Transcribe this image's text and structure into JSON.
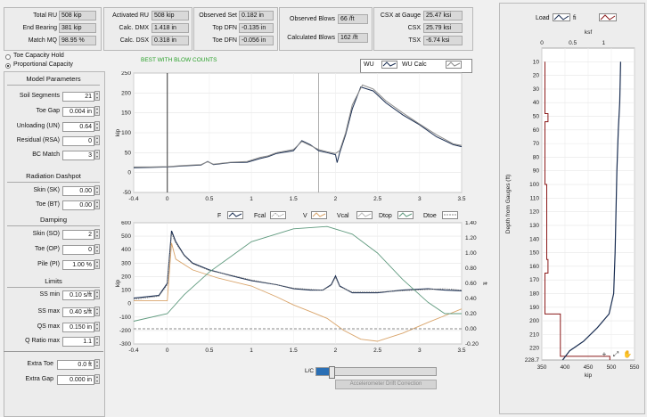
{
  "results": {
    "total_ru": {
      "label": "Total RU",
      "value": "508 kip"
    },
    "end_bearing": {
      "label": "End Bearing",
      "value": "381 kip"
    },
    "match_mq": {
      "label": "Match MQ",
      "value": "98.95 %"
    },
    "activated_ru": {
      "label": "Activated RU",
      "value": "508 kip"
    },
    "calc_dmx": {
      "label": "Calc. DMX",
      "value": "1.418 in"
    },
    "calc_dsx": {
      "label": "Calc. DSX",
      "value": "0.318 in"
    },
    "observed_set": {
      "label": "Observed Set",
      "value": "0.182 in"
    },
    "top_dfn": {
      "label": "Top DFN",
      "value": "-0.135 in"
    },
    "toe_dfn": {
      "label": "Toe DFN",
      "value": "-0.056 in"
    },
    "observed_blows": {
      "label": "Observed Blows",
      "value": "66 /ft"
    },
    "calculated_blows": {
      "label": "Calculated Blows",
      "value": "162 /ft"
    },
    "csx_at_gauge": {
      "label": "CSX at Gauge",
      "value": "25.47 ksi"
    },
    "csx": {
      "label": "CSX",
      "value": "25.79 ksi"
    },
    "tsx": {
      "label": "TSX",
      "value": "-6.74 ksi"
    }
  },
  "capacity_mode": {
    "options": [
      "Toe Capacity Hold",
      "Proportional Capacity"
    ],
    "selected": "Proportional Capacity"
  },
  "model_parameters": {
    "title": "Model Parameters",
    "fields": [
      {
        "label": "Soil Segments",
        "value": "21"
      },
      {
        "label": "Toe Gap",
        "value": "0.004 in"
      },
      {
        "label": "Unloading (UN)",
        "value": "0.64"
      },
      {
        "label": "Residual (RSA)",
        "value": "0"
      },
      {
        "label": "BC Match",
        "value": "3"
      }
    ]
  },
  "radiation_dashpot": {
    "title": "Radiation Dashpot",
    "fields": [
      {
        "label": "Skin (SK)",
        "value": "0.00"
      },
      {
        "label": "Toe (BT)",
        "value": "0.00"
      }
    ]
  },
  "damping": {
    "title": "Damping",
    "fields": [
      {
        "label": "Skin (SO)",
        "value": "2"
      },
      {
        "label": "Toe (OP)",
        "value": "0"
      },
      {
        "label": "Pile (PI)",
        "value": "1.00 %"
      }
    ]
  },
  "limits": {
    "title": "Limits",
    "fields": [
      {
        "label": "SS min",
        "value": "0.10 s/ft"
      },
      {
        "label": "SS max",
        "value": "0.40 s/ft"
      },
      {
        "label": "QS max",
        "value": "0.150 in"
      },
      {
        "label": "Q Ratio max",
        "value": "1.1"
      }
    ]
  },
  "extras": {
    "fields": [
      {
        "label": "Extra Toe",
        "value": "0.0 ft"
      },
      {
        "label": "Extra Gap",
        "value": "0.000 in"
      }
    ]
  },
  "top_chart": {
    "title": "BEST WITH BLOW COUNTS",
    "legend": [
      "WU",
      "WU Calc"
    ],
    "ylabel": "kip"
  },
  "bottom_chart": {
    "legend": [
      "F",
      "Fcal",
      "V",
      "Vcal",
      "Dtop",
      "Dtoe"
    ],
    "ylabel_left": "kip",
    "ylabel_right": "ft"
  },
  "drift_slider": {
    "lc_label": "L/C",
    "label": "Accelerometer Drift Correction",
    "value_fraction": 0.12
  },
  "depth_chart": {
    "legend": [
      "Load",
      "fi"
    ],
    "top_axis_label": "ksf",
    "bottom_axis_label": "kip",
    "ylabel": "Depth from Gauges (ft)",
    "last_depth_label": "228.7"
  },
  "colors": {
    "wave_blue": "#1a2e52",
    "wave_calc": "#8a8a8a",
    "velocity_orange": "#d9a46a",
    "green": "#5f9a7e",
    "dashed": "#888888",
    "red": "#8b1a1a",
    "title_green": "#2aa02a"
  },
  "chart_data": [
    {
      "type": "line",
      "title": "BEST WITH BLOW COUNTS",
      "xlabel": "",
      "ylabel": "kip",
      "xlim": [
        -0.4,
        3.5
      ],
      "ylim": [
        -50,
        250
      ],
      "xticks": [
        -0.4,
        0,
        0.5,
        1,
        1.5,
        2,
        2.5,
        3,
        3.5
      ],
      "yticks": [
        -50,
        0,
        50,
        100,
        150,
        200,
        250
      ],
      "series": [
        {
          "name": "WU",
          "points": [
            [
              -0.4,
              12
            ],
            [
              -0.2,
              13
            ],
            [
              0,
              14
            ],
            [
              0.2,
              17
            ],
            [
              0.4,
              19
            ],
            [
              0.48,
              28
            ],
            [
              0.55,
              20
            ],
            [
              0.75,
              25
            ],
            [
              0.95,
              26
            ],
            [
              1.1,
              35
            ],
            [
              1.2,
              40
            ],
            [
              1.3,
              48
            ],
            [
              1.5,
              55
            ],
            [
              1.6,
              80
            ],
            [
              1.7,
              70
            ],
            [
              1.8,
              55
            ],
            [
              1.9,
              50
            ],
            [
              2.0,
              45
            ],
            [
              2.02,
              25
            ],
            [
              2.05,
              50
            ],
            [
              2.12,
              95
            ],
            [
              2.2,
              160
            ],
            [
              2.3,
              215
            ],
            [
              2.45,
              205
            ],
            [
              2.6,
              175
            ],
            [
              2.8,
              145
            ],
            [
              3.0,
              120
            ],
            [
              3.2,
              90
            ],
            [
              3.4,
              70
            ],
            [
              3.5,
              65
            ]
          ]
        },
        {
          "name": "WU Calc",
          "points": [
            [
              -0.4,
              14
            ],
            [
              -0.2,
              14
            ],
            [
              0,
              15
            ],
            [
              0.2,
              18
            ],
            [
              0.4,
              20
            ],
            [
              0.48,
              27
            ],
            [
              0.55,
              21
            ],
            [
              0.75,
              26
            ],
            [
              0.95,
              28
            ],
            [
              1.1,
              38
            ],
            [
              1.2,
              42
            ],
            [
              1.3,
              50
            ],
            [
              1.5,
              58
            ],
            [
              1.6,
              78
            ],
            [
              1.7,
              68
            ],
            [
              1.8,
              58
            ],
            [
              1.9,
              52
            ],
            [
              2.0,
              48
            ],
            [
              2.05,
              55
            ],
            [
              2.12,
              100
            ],
            [
              2.2,
              170
            ],
            [
              2.32,
              220
            ],
            [
              2.45,
              210
            ],
            [
              2.6,
              180
            ],
            [
              2.8,
              150
            ],
            [
              3.0,
              122
            ],
            [
              3.2,
              95
            ],
            [
              3.4,
              72
            ],
            [
              3.5,
              68
            ]
          ]
        }
      ]
    },
    {
      "type": "line",
      "ylabel": "kip",
      "y2label": "ft",
      "xlim": [
        -0.4,
        3.5
      ],
      "ylim": [
        -300,
        600
      ],
      "y2lim": [
        -0.2,
        1.4
      ],
      "xticks": [
        -0.4,
        0,
        0.5,
        1,
        1.5,
        2,
        2.5,
        3,
        3.5
      ],
      "yticks": [
        -300,
        -200,
        -100,
        0,
        100,
        200,
        300,
        400,
        500,
        600
      ],
      "y2ticks": [
        -0.2,
        0,
        0.2,
        0.4,
        0.6,
        0.8,
        1.0,
        1.2,
        1.4
      ],
      "series": [
        {
          "name": "F",
          "axis": "left",
          "points": [
            [
              -0.4,
              40
            ],
            [
              -0.1,
              60
            ],
            [
              0,
              150
            ],
            [
              0.05,
              540
            ],
            [
              0.1,
              460
            ],
            [
              0.2,
              360
            ],
            [
              0.3,
              300
            ],
            [
              0.5,
              250
            ],
            [
              0.8,
              200
            ],
            [
              1.0,
              170
            ],
            [
              1.3,
              140
            ],
            [
              1.5,
              110
            ],
            [
              1.7,
              100
            ],
            [
              1.85,
              100
            ],
            [
              1.95,
              140
            ],
            [
              2.0,
              205
            ],
            [
              2.05,
              130
            ],
            [
              2.2,
              80
            ],
            [
              2.5,
              80
            ],
            [
              2.8,
              100
            ],
            [
              3.1,
              110
            ],
            [
              3.3,
              100
            ],
            [
              3.5,
              95
            ]
          ]
        },
        {
          "name": "Fcal",
          "axis": "left",
          "points": [
            [
              -0.4,
              30
            ],
            [
              -0.1,
              55
            ],
            [
              0,
              140
            ],
            [
              0.05,
              520
            ],
            [
              0.1,
              450
            ],
            [
              0.2,
              355
            ],
            [
              0.3,
              295
            ],
            [
              0.5,
              245
            ],
            [
              0.8,
              205
            ],
            [
              1.0,
              175
            ],
            [
              1.3,
              140
            ],
            [
              1.5,
              115
            ],
            [
              1.7,
              105
            ],
            [
              1.85,
              100
            ],
            [
              1.95,
              135
            ],
            [
              2.0,
              195
            ],
            [
              2.05,
              125
            ],
            [
              2.2,
              85
            ],
            [
              2.5,
              85
            ],
            [
              2.8,
              95
            ],
            [
              3.1,
              105
            ],
            [
              3.3,
              110
            ],
            [
              3.5,
              100
            ]
          ]
        },
        {
          "name": "V",
          "axis": "left",
          "points": [
            [
              -0.4,
              20
            ],
            [
              0,
              20
            ],
            [
              0.05,
              450
            ],
            [
              0.1,
              330
            ],
            [
              0.3,
              250
            ],
            [
              0.6,
              190
            ],
            [
              1.0,
              130
            ],
            [
              1.3,
              50
            ],
            [
              1.5,
              -10
            ],
            [
              1.7,
              -60
            ],
            [
              1.9,
              -110
            ],
            [
              2.1,
              -200
            ],
            [
              2.3,
              -265
            ],
            [
              2.5,
              -280
            ],
            [
              2.8,
              -220
            ],
            [
              3.1,
              -140
            ],
            [
              3.5,
              -40
            ]
          ]
        },
        {
          "name": "Dtop",
          "axis": "right",
          "points": [
            [
              -0.4,
              0.1
            ],
            [
              0,
              0.2
            ],
            [
              0.2,
              0.45
            ],
            [
              0.5,
              0.75
            ],
            [
              1.0,
              1.15
            ],
            [
              1.5,
              1.32
            ],
            [
              1.9,
              1.35
            ],
            [
              2.2,
              1.25
            ],
            [
              2.5,
              1.0
            ],
            [
              2.8,
              0.65
            ],
            [
              3.1,
              0.35
            ],
            [
              3.3,
              0.2
            ],
            [
              3.5,
              0.2
            ]
          ]
        },
        {
          "name": "Dtoe",
          "axis": "right",
          "points": [
            [
              -0.4,
              0.0
            ],
            [
              3.5,
              0.0
            ]
          ]
        }
      ]
    },
    {
      "type": "line",
      "xlabel_bottom": "kip",
      "xlabel_top": "ksf",
      "ylabel": "Depth from Gauges (ft)",
      "xlim_bottom": [
        350,
        550
      ],
      "xlim_top": [
        0,
        1.5
      ],
      "ylim": [
        0,
        228.7
      ],
      "xticks_bottom": [
        350,
        400,
        450,
        500,
        550
      ],
      "xticks_top": [
        0,
        0.5,
        1
      ],
      "yticks": [
        10,
        20,
        30,
        40,
        50,
        60,
        70,
        80,
        90,
        100,
        110,
        120,
        130,
        140,
        150,
        160,
        170,
        180,
        190,
        200,
        210,
        220
      ],
      "series": [
        {
          "name": "Load",
          "points": [
            [
              520,
              10
            ],
            [
              518,
              40
            ],
            [
              515,
              60
            ],
            [
              512,
              90
            ],
            [
              510,
              120
            ],
            [
              508,
              150
            ],
            [
              505,
              180
            ],
            [
              495,
              195
            ],
            [
              470,
              205
            ],
            [
              440,
              215
            ],
            [
              410,
              222
            ],
            [
              395,
              228.7
            ]
          ]
        },
        {
          "name": "fi",
          "points": [
            [
              0.05,
              10
            ],
            [
              0.05,
              48
            ],
            [
              0.1,
              48
            ],
            [
              0.1,
              54
            ],
            [
              0.05,
              54
            ],
            [
              0.05,
              100
            ],
            [
              0.08,
              100
            ],
            [
              0.08,
              155
            ],
            [
              0.1,
              155
            ],
            [
              0.1,
              165
            ],
            [
              0.05,
              165
            ],
            [
              0.05,
              195
            ],
            [
              0.3,
              195
            ],
            [
              0.3,
              226
            ],
            [
              1.1,
              226
            ],
            [
              1.1,
              228.7
            ]
          ]
        }
      ]
    }
  ]
}
